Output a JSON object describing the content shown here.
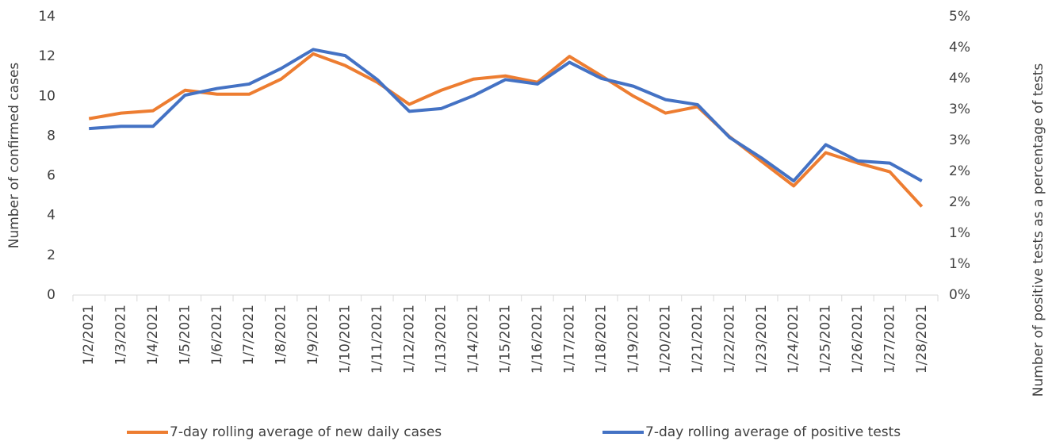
{
  "chart_data": {
    "type": "line",
    "ylabel": "Number of confirmed cases",
    "y2label": "Number of positive tests as a percentage of tests",
    "categories": [
      "1/2/2021",
      "1/3/2021",
      "1/4/2021",
      "1/5/2021",
      "1/6/2021",
      "1/7/2021",
      "1/8/2021",
      "1/9/2021",
      "1/10/2021",
      "1/11/2021",
      "1/12/2021",
      "1/13/2021",
      "1/14/2021",
      "1/15/2021",
      "1/16/2021",
      "1/17/2021",
      "1/18/2021",
      "1/19/2021",
      "1/20/2021",
      "1/21/2021",
      "1/22/2021",
      "1/23/2021",
      "1/24/2021",
      "1/25/2021",
      "1/26/2021",
      "1/27/2021",
      "1/28/2021"
    ],
    "series": [
      {
        "name": "7-day rolling average of new daily cases",
        "color": "#ed7d31",
        "values": [
          8.87,
          9.15,
          9.27,
          10.3,
          10.1,
          10.1,
          10.86,
          12.13,
          11.54,
          10.7,
          9.59,
          10.3,
          10.86,
          11.02,
          10.7,
          12.0,
          11.02,
          10.0,
          9.15,
          9.47,
          7.96,
          6.72,
          5.49,
          7.16,
          6.64,
          6.2,
          4.45
        ]
      },
      {
        "name": "7-day rolling average of positive tests",
        "color": "#4472c4",
        "axis": "y2",
        "values": [
          2.99,
          3.03,
          3.03,
          3.59,
          3.71,
          3.79,
          4.07,
          4.41,
          4.3,
          3.87,
          3.3,
          3.35,
          3.58,
          3.87,
          3.79,
          4.18,
          3.89,
          3.75,
          3.51,
          3.42,
          2.83,
          2.46,
          2.05,
          2.7,
          2.41,
          2.37,
          2.05
        ]
      }
    ],
    "ylim": [
      0,
      14
    ],
    "yticks": [
      0,
      2,
      4,
      6,
      8,
      10,
      12,
      14
    ],
    "y2lim": [
      0,
      5
    ],
    "y2ticks": [
      {
        "value": 0,
        "label": "0%"
      },
      {
        "value": 0.556,
        "label": "1%"
      },
      {
        "value": 1.111,
        "label": "1%"
      },
      {
        "value": 1.667,
        "label": "2%"
      },
      {
        "value": 2.222,
        "label": "2%"
      },
      {
        "value": 2.778,
        "label": "3%"
      },
      {
        "value": 3.333,
        "label": "3%"
      },
      {
        "value": 3.889,
        "label": "4%"
      },
      {
        "value": 4.444,
        "label": "4%"
      },
      {
        "value": 5,
        "label": "5%"
      }
    ],
    "grid": false,
    "legend": "bottom"
  }
}
